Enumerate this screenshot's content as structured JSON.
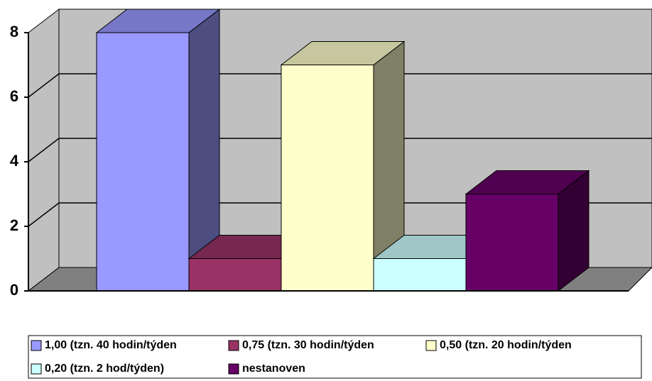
{
  "chart_data": {
    "type": "bar",
    "ylim": [
      0,
      8
    ],
    "yticks": [
      0,
      2,
      4,
      6,
      8
    ],
    "grid": true,
    "series": [
      {
        "name": "1,00 (tzn. 40 hodin/týden",
        "color": "#9999ff",
        "values": [
          8
        ]
      },
      {
        "name": "0,75 (tzn. 30 hodin/týden",
        "color": "#993366",
        "values": [
          1
        ]
      },
      {
        "name": "0,50 (tzn. 20 hodin/týden",
        "color": "#ffffcc",
        "values": [
          7
        ]
      },
      {
        "name": "0,20 (tzn. 2 hod/týden)",
        "color": "#ccffff",
        "values": [
          1
        ]
      },
      {
        "name": "nestanoven",
        "color": "#660066",
        "values": [
          3
        ]
      }
    ],
    "legend": "bottom"
  }
}
